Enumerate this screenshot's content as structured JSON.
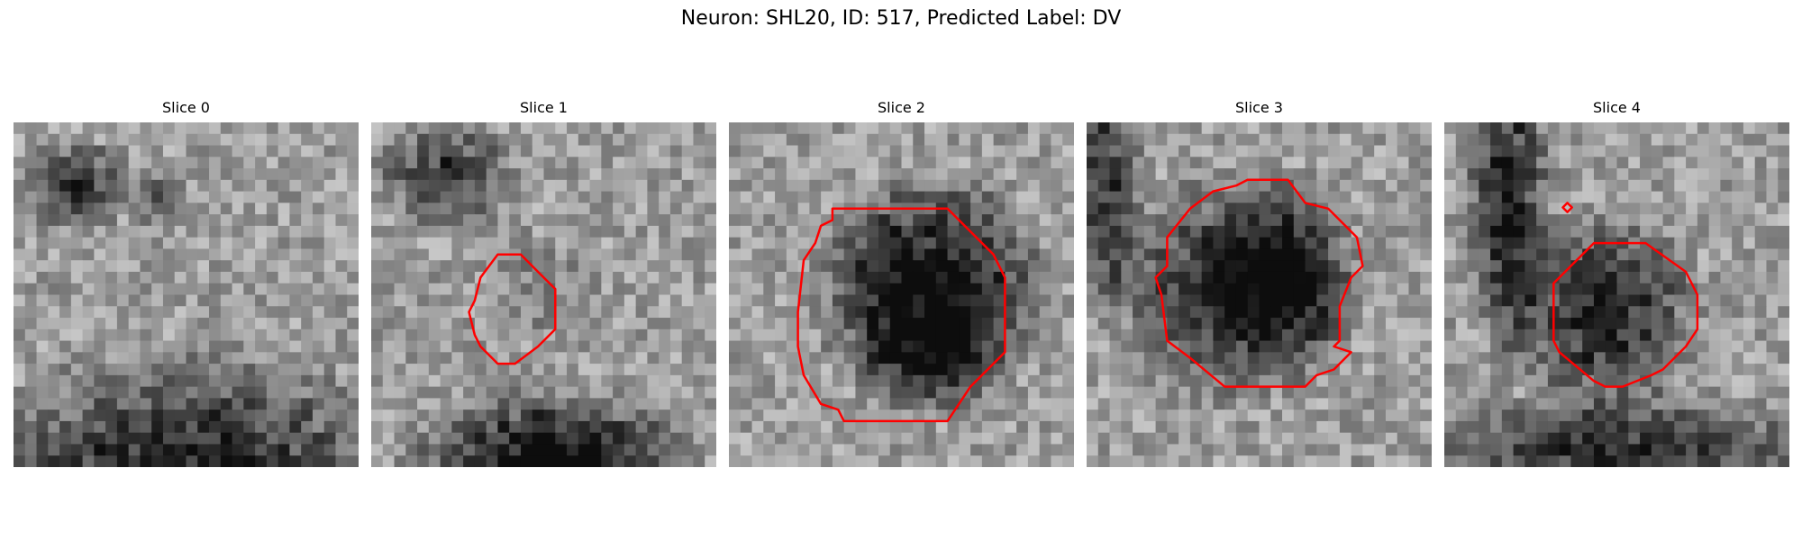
{
  "figure": {
    "title": "Neuron: SHL20, ID: 517, Predicted Label: DV",
    "contour_color": "#ff0000"
  },
  "panels": [
    {
      "title": "Slice 0",
      "seed": 11,
      "dark_blobs": [
        "upper-left",
        "bottom arc"
      ],
      "contours": []
    },
    {
      "title": "Slice 1",
      "seed": 23,
      "dark_blobs": [
        "upper-left",
        "bottom"
      ],
      "contours": [
        "small-octagon-center"
      ]
    },
    {
      "title": "Slice 2",
      "seed": 37,
      "dark_blobs": [
        "large-center"
      ],
      "contours": [
        "large-octagon-center"
      ]
    },
    {
      "title": "Slice 3",
      "seed": 41,
      "dark_blobs": [
        "center",
        "left-edge"
      ],
      "contours": [
        "irregular-octagon-center"
      ]
    },
    {
      "title": "Slice 4",
      "seed": 53,
      "dark_blobs": [
        "left-vertical-band",
        "center",
        "bottom"
      ],
      "contours": [
        "octagon-center",
        "tiny-marker-upper-left"
      ]
    }
  ]
}
